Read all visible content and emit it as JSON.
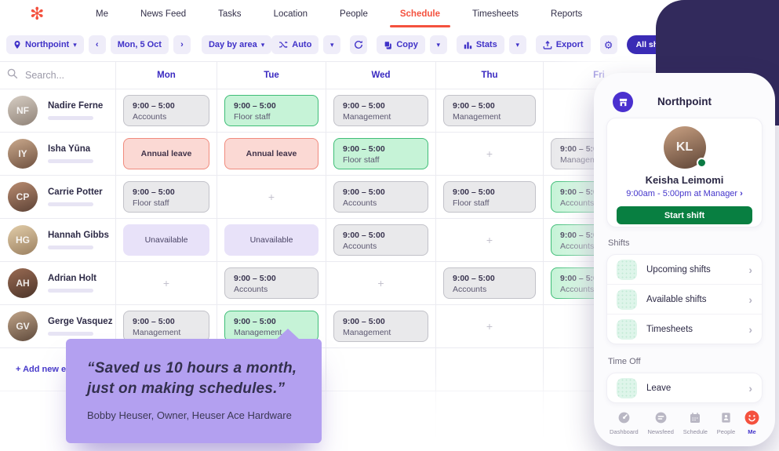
{
  "nav": {
    "items": [
      {
        "label": "Me"
      },
      {
        "label": "News Feed"
      },
      {
        "label": "Tasks"
      },
      {
        "label": "Location"
      },
      {
        "label": "People"
      },
      {
        "label": "Schedule"
      },
      {
        "label": "Timesheets"
      },
      {
        "label": "Reports"
      }
    ],
    "active_index": 5
  },
  "icons": {
    "logo": "✻",
    "chevron_down": "▾",
    "prev": "‹",
    "next": "›",
    "chevron_right": "›",
    "gear": "⚙",
    "plus": "+"
  },
  "toolbar": {
    "location": "Northpoint",
    "date": "Mon, 5 Oct",
    "view": "Day by area",
    "auto": "Auto",
    "copy": "Copy",
    "stats": "Stats",
    "export": "Export",
    "publish": "All shifts published"
  },
  "schedule": {
    "search_placeholder": "Search...",
    "days": [
      "Mon",
      "Tue",
      "Wed",
      "Thu",
      "Fri"
    ],
    "add_employee_label": "+ Add new employee",
    "employees": [
      {
        "name": "Nadire Ferne",
        "initials": "NF",
        "avatar_colors": [
          "#d7cec4",
          "#8f8277"
        ],
        "shifts": [
          {
            "type": "shift",
            "style": "gray",
            "time": "9:00 – 5:00",
            "area": "Accounts"
          },
          {
            "type": "shift",
            "style": "green",
            "time": "9:00 – 5:00",
            "area": "Floor staff"
          },
          {
            "type": "shift",
            "style": "gray",
            "time": "9:00 – 5:00",
            "area": "Management"
          },
          {
            "type": "shift",
            "style": "gray",
            "time": "9:00 – 5:00",
            "area": "Management"
          },
          {
            "type": "blank"
          }
        ]
      },
      {
        "name": "Isha Yūna",
        "initials": "IY",
        "avatar_colors": [
          "#caa98c",
          "#6f5140"
        ],
        "shifts": [
          {
            "type": "leave",
            "label": "Annual leave"
          },
          {
            "type": "leave",
            "label": "Annual leave"
          },
          {
            "type": "shift",
            "style": "green",
            "time": "9:00 – 5:00",
            "area": "Floor staff"
          },
          {
            "type": "empty"
          },
          {
            "type": "shift",
            "style": "gray",
            "time": "9:00 – 5:00",
            "area": "Management"
          }
        ]
      },
      {
        "name": "Carrie Potter",
        "initials": "CP",
        "avatar_colors": [
          "#b98c70",
          "#5d4236"
        ],
        "shifts": [
          {
            "type": "shift",
            "style": "gray",
            "time": "9:00 – 5:00",
            "area": "Floor staff"
          },
          {
            "type": "empty"
          },
          {
            "type": "shift",
            "style": "gray",
            "time": "9:00 – 5:00",
            "area": "Accounts"
          },
          {
            "type": "shift",
            "style": "gray",
            "time": "9:00 – 5:00",
            "area": "Floor staff"
          },
          {
            "type": "shift",
            "style": "green",
            "time": "9:00 – 5:00",
            "area": "Accounts"
          }
        ]
      },
      {
        "name": "Hannah Gibbs",
        "initials": "HG",
        "avatar_colors": [
          "#e2cda9",
          "#9b8060"
        ],
        "shifts": [
          {
            "type": "unavailable",
            "label": "Unavailable"
          },
          {
            "type": "unavailable",
            "label": "Unavailable"
          },
          {
            "type": "shift",
            "style": "gray",
            "time": "9:00 – 5:00",
            "area": "Accounts"
          },
          {
            "type": "empty"
          },
          {
            "type": "shift",
            "style": "green",
            "time": "9:00 – 5:00",
            "area": "Accounts"
          }
        ]
      },
      {
        "name": "Adrian Holt",
        "initials": "AH",
        "avatar_colors": [
          "#9a6b53",
          "#4b3429"
        ],
        "shifts": [
          {
            "type": "empty"
          },
          {
            "type": "shift",
            "style": "gray",
            "time": "9:00 – 5:00",
            "area": "Accounts"
          },
          {
            "type": "empty"
          },
          {
            "type": "shift",
            "style": "gray",
            "time": "9:00 – 5:00",
            "area": "Accounts"
          },
          {
            "type": "shift",
            "style": "green",
            "time": "9:00 – 5:00",
            "area": "Accounts"
          }
        ]
      },
      {
        "name": "Gerge Vasquez",
        "initials": "GV",
        "avatar_colors": [
          "#c0a488",
          "#5f4a3c"
        ],
        "shifts": [
          {
            "type": "shift",
            "style": "gray",
            "time": "9:00 – 5:00",
            "area": "Management"
          },
          {
            "type": "shift",
            "style": "green",
            "time": "9:00 – 5:00",
            "area": "Management"
          },
          {
            "type": "shift",
            "style": "gray",
            "time": "9:00 – 5:00",
            "area": "Management"
          },
          {
            "type": "empty"
          },
          {
            "type": "blank"
          }
        ]
      }
    ]
  },
  "quote": {
    "text_line1": "“Saved us 10 hours a month,",
    "text_line2": "just on making schedules.”",
    "attribution": "Bobby Heuser, Owner, Heuser Ace Hardware"
  },
  "phone": {
    "title": "Northpoint",
    "profile": {
      "name": "Keisha Leimomi",
      "initials": "KL",
      "avatar_colors": [
        "#c9a183",
        "#5f4536"
      ],
      "shift_link": "9:00am - 5:00pm at Manager",
      "button": "Start shift"
    },
    "sections": [
      {
        "label": "Shifts",
        "items": [
          {
            "label": "Upcoming shifts"
          },
          {
            "label": "Available shifts"
          },
          {
            "label": "Timesheets"
          }
        ]
      },
      {
        "label": "Time Off",
        "items": [
          {
            "label": "Leave"
          }
        ]
      }
    ],
    "bottom_nav": [
      {
        "label": "Dashboard",
        "icon": "gauge-icon",
        "active": false
      },
      {
        "label": "Newsfeed",
        "icon": "newsfeed-icon",
        "active": false
      },
      {
        "label": "Schedule",
        "icon": "calendar-icon",
        "active": false
      },
      {
        "label": "People",
        "icon": "people-icon",
        "active": false
      },
      {
        "label": "Me",
        "icon": "me-icon",
        "active": true
      }
    ]
  },
  "colors": {
    "accent_coral": "#f4513e",
    "accent_indigo": "#4032c8",
    "publish_button": "#3a2bb5",
    "corner_navy": "#322a5c",
    "shift_green_bg": "#c6f3d7",
    "shift_green_border": "#3fbd77",
    "shift_gray_bg": "#e9e9eb",
    "leave_pink_bg": "#fbd9d4",
    "leave_pink_border": "#f08a7d",
    "unavailable_lavender": "#e8e2f9",
    "start_shift_green": "#087f41",
    "quote_purple": "#b3a0f0"
  }
}
